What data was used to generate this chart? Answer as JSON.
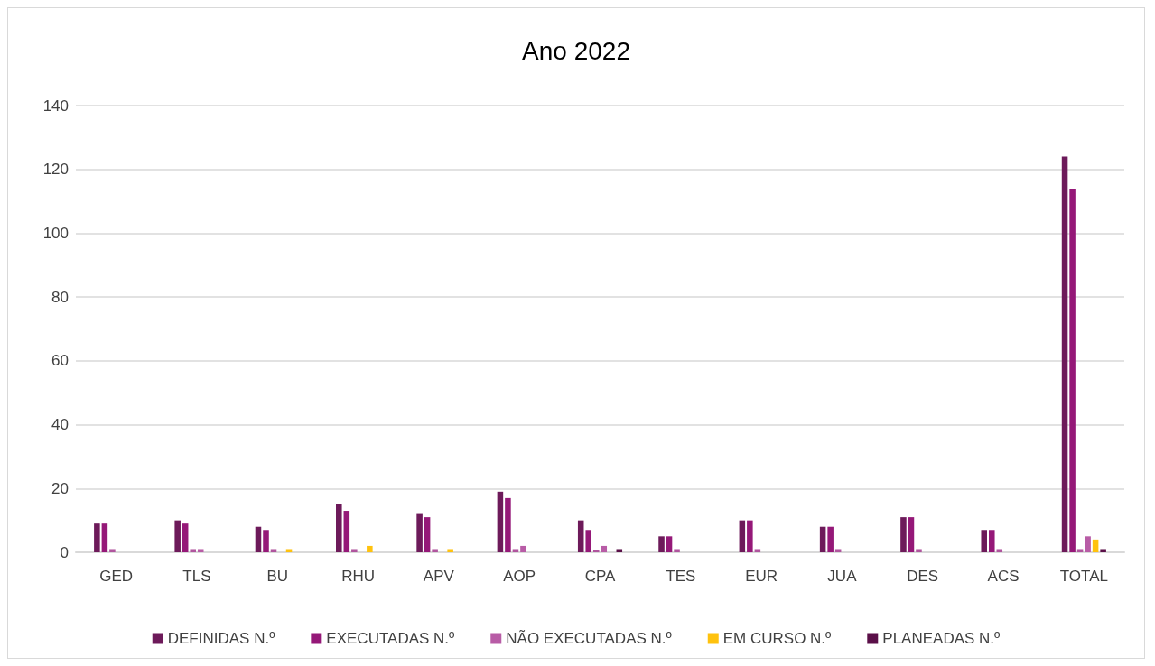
{
  "chart_data": {
    "type": "bar",
    "title": "Ano 2022",
    "categories": [
      "GED",
      "TLS",
      "BU",
      "RHU",
      "APV",
      "AOP",
      "CPA",
      "TES",
      "EUR",
      "JUA",
      "DES",
      "ACS",
      "TOTAL"
    ],
    "series": [
      {
        "name": "DEFINIDAS N.º",
        "color": "#6d1a5a",
        "values": [
          9,
          10,
          8,
          15,
          12,
          19,
          10,
          5,
          10,
          8,
          11,
          7,
          124
        ]
      },
      {
        "name": "EXECUTADAS N.º",
        "color": "#951878",
        "values": [
          9,
          9,
          7,
          13,
          11,
          17,
          7,
          5,
          10,
          8,
          11,
          7,
          114
        ]
      },
      {
        "color": "#b0559e",
        "values": [
          1,
          1,
          1,
          1,
          1,
          1,
          0.7,
          1,
          1,
          1,
          1,
          1,
          1
        ]
      },
      {
        "name": "NÃO EXECUTADAS N.º",
        "color": "#b85ca6",
        "values": [
          0,
          1,
          0,
          0,
          0,
          2,
          2,
          0,
          0,
          0,
          0,
          0,
          5
        ]
      },
      {
        "name": "EM CURSO N.º",
        "color": "#ffc20e",
        "values": [
          0,
          0,
          1,
          2,
          1,
          0,
          0,
          0,
          0,
          0,
          0,
          0,
          4
        ]
      },
      {
        "name": "PLANEADAS N.º",
        "color": "#5a0f48",
        "values": [
          0,
          0,
          0,
          0,
          0,
          0,
          1,
          0,
          0,
          0,
          0,
          0,
          1
        ]
      }
    ],
    "ylim": [
      0,
      140
    ],
    "yticks": [
      0,
      20,
      40,
      60,
      80,
      100,
      120,
      140
    ],
    "grid": "y",
    "legend": "bottom"
  }
}
